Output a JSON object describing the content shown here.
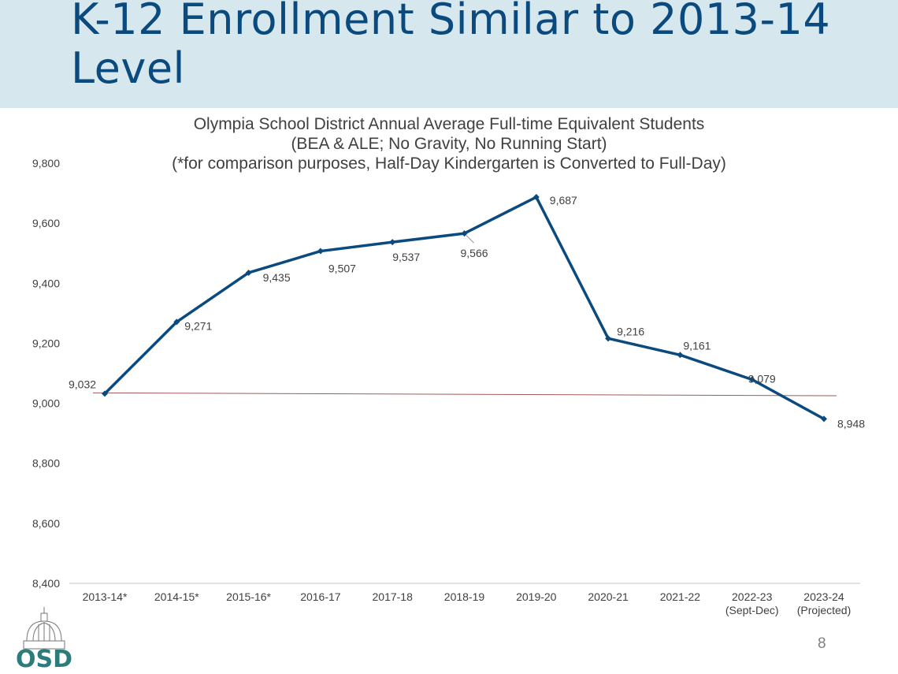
{
  "slide": {
    "title": "K-12 Enrollment Similar to 2013-14 Level",
    "page_number": "8",
    "logo_text": "OSD"
  },
  "colors": {
    "header_bg": "#d6e7ee",
    "title": "#0b4a7e",
    "series": "#0b4a7e",
    "reference_line": "#a05a5a",
    "logo": "#2d7b7b"
  },
  "chart_data": {
    "type": "line",
    "title_lines": [
      "Olympia School District Annual Average Full-time Equivalent Students",
      "(BEA & ALE; No Gravity, No Running Start)",
      "(*for comparison purposes, Half-Day Kindergarten is Converted to Full-Day)"
    ],
    "categories": [
      "2013-14*",
      "2014-15*",
      "2015-16*",
      "2016-17",
      "2017-18",
      "2018-19",
      "2019-20",
      "2020-21",
      "2021-22",
      "2022-23",
      "2023-24"
    ],
    "category_sublabels": [
      "",
      "",
      "",
      "",
      "",
      "",
      "",
      "",
      "",
      "(Sept-Dec)",
      "(Projected)"
    ],
    "values": [
      9032,
      9271,
      9435,
      9507,
      9537,
      9566,
      9687,
      9216,
      9161,
      9079,
      8948
    ],
    "data_labels": [
      "9,032",
      "9,271",
      "9,435",
      "9,507",
      "9,537",
      "9,566",
      "9,687",
      "9,216",
      "9,161",
      "9,079",
      "8,948"
    ],
    "ylim": [
      8400,
      9800
    ],
    "yticks": [
      8400,
      8600,
      8800,
      9000,
      9200,
      9400,
      9600,
      9800
    ],
    "ytick_labels": [
      "8,400",
      "8,600",
      "8,800",
      "9,000",
      "9,200",
      "9,400",
      "9,600",
      "9,800"
    ],
    "reference_line": {
      "from": 9032,
      "to": 9025
    },
    "grid": false,
    "marker": "diamond"
  }
}
